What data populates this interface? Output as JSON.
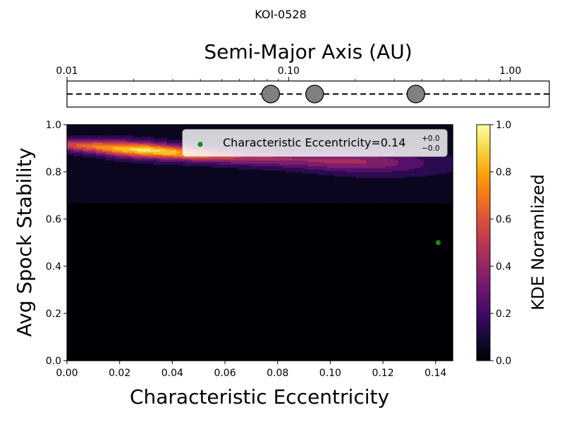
{
  "chart_data": [
    {
      "type": "scatter",
      "title": "KOI-0528",
      "xlabel": "Semi-Major Axis (AU)",
      "ylabel": "",
      "x_scale": "log",
      "xlim": [
        0.01,
        1.5
      ],
      "tick_labels": [
        "0.01",
        "0.10",
        "1.00"
      ],
      "tick_values": [
        0.01,
        0.1,
        1.0
      ],
      "reference_line": "dashed",
      "planets": [
        {
          "a": 0.083
        },
        {
          "a": 0.131
        },
        {
          "a": 0.375
        }
      ],
      "marker_color": "#808080"
    },
    {
      "type": "heatmap",
      "xlabel": "Characteristic Eccentricity",
      "ylabel": "Avg Spock Stability",
      "xlim": [
        0.0,
        0.1465
      ],
      "ylim": [
        0.0,
        1.0
      ],
      "x_tick_labels": [
        "0.00",
        "0.02",
        "0.04",
        "0.06",
        "0.08",
        "0.10",
        "0.12",
        "0.14"
      ],
      "y_tick_labels": [
        "0.0",
        "0.2",
        "0.4",
        "0.6",
        "0.8",
        "1.0"
      ],
      "colormap": "inferno",
      "colorbar": {
        "label": "KDE Noramlized",
        "range": [
          0.0,
          1.0
        ],
        "tick_labels": [
          "0.0",
          "0.2",
          "0.4",
          "0.6",
          "0.8",
          "1.0"
        ]
      },
      "legend": {
        "placement": "top-right",
        "label_prefix": "Characteristic Eccentricity=0.14",
        "sup": "+0.0",
        "sub": "−0.0",
        "marker_color": "#1a8a1a"
      },
      "point": {
        "x": 0.141,
        "y": 0.5
      },
      "kde": {
        "background_value": 0.0,
        "upper_band": {
          "y_range": [
            0.666,
            1.0
          ],
          "base_value": 0.06
        },
        "ridge": {
          "x": [
            0.0,
            0.01,
            0.02,
            0.03,
            0.04,
            0.05,
            0.06,
            0.07,
            0.08,
            0.09,
            0.1,
            0.11,
            0.12,
            0.13,
            0.14,
            0.1465
          ],
          "y": [
            0.915,
            0.91,
            0.9,
            0.893,
            0.885,
            0.876,
            0.868,
            0.86,
            0.856,
            0.852,
            0.848,
            0.845,
            0.842,
            0.84,
            0.838,
            0.836
          ],
          "peak": [
            0.55,
            0.7,
            0.85,
            0.95,
            0.85,
            0.68,
            0.55,
            0.46,
            0.42,
            0.4,
            0.42,
            0.42,
            0.36,
            0.26,
            0.16,
            0.12
          ],
          "width": [
            0.018,
            0.021,
            0.023,
            0.023,
            0.022,
            0.022,
            0.022,
            0.022,
            0.024,
            0.027,
            0.03,
            0.032,
            0.033,
            0.034,
            0.035,
            0.035
          ]
        }
      }
    }
  ]
}
